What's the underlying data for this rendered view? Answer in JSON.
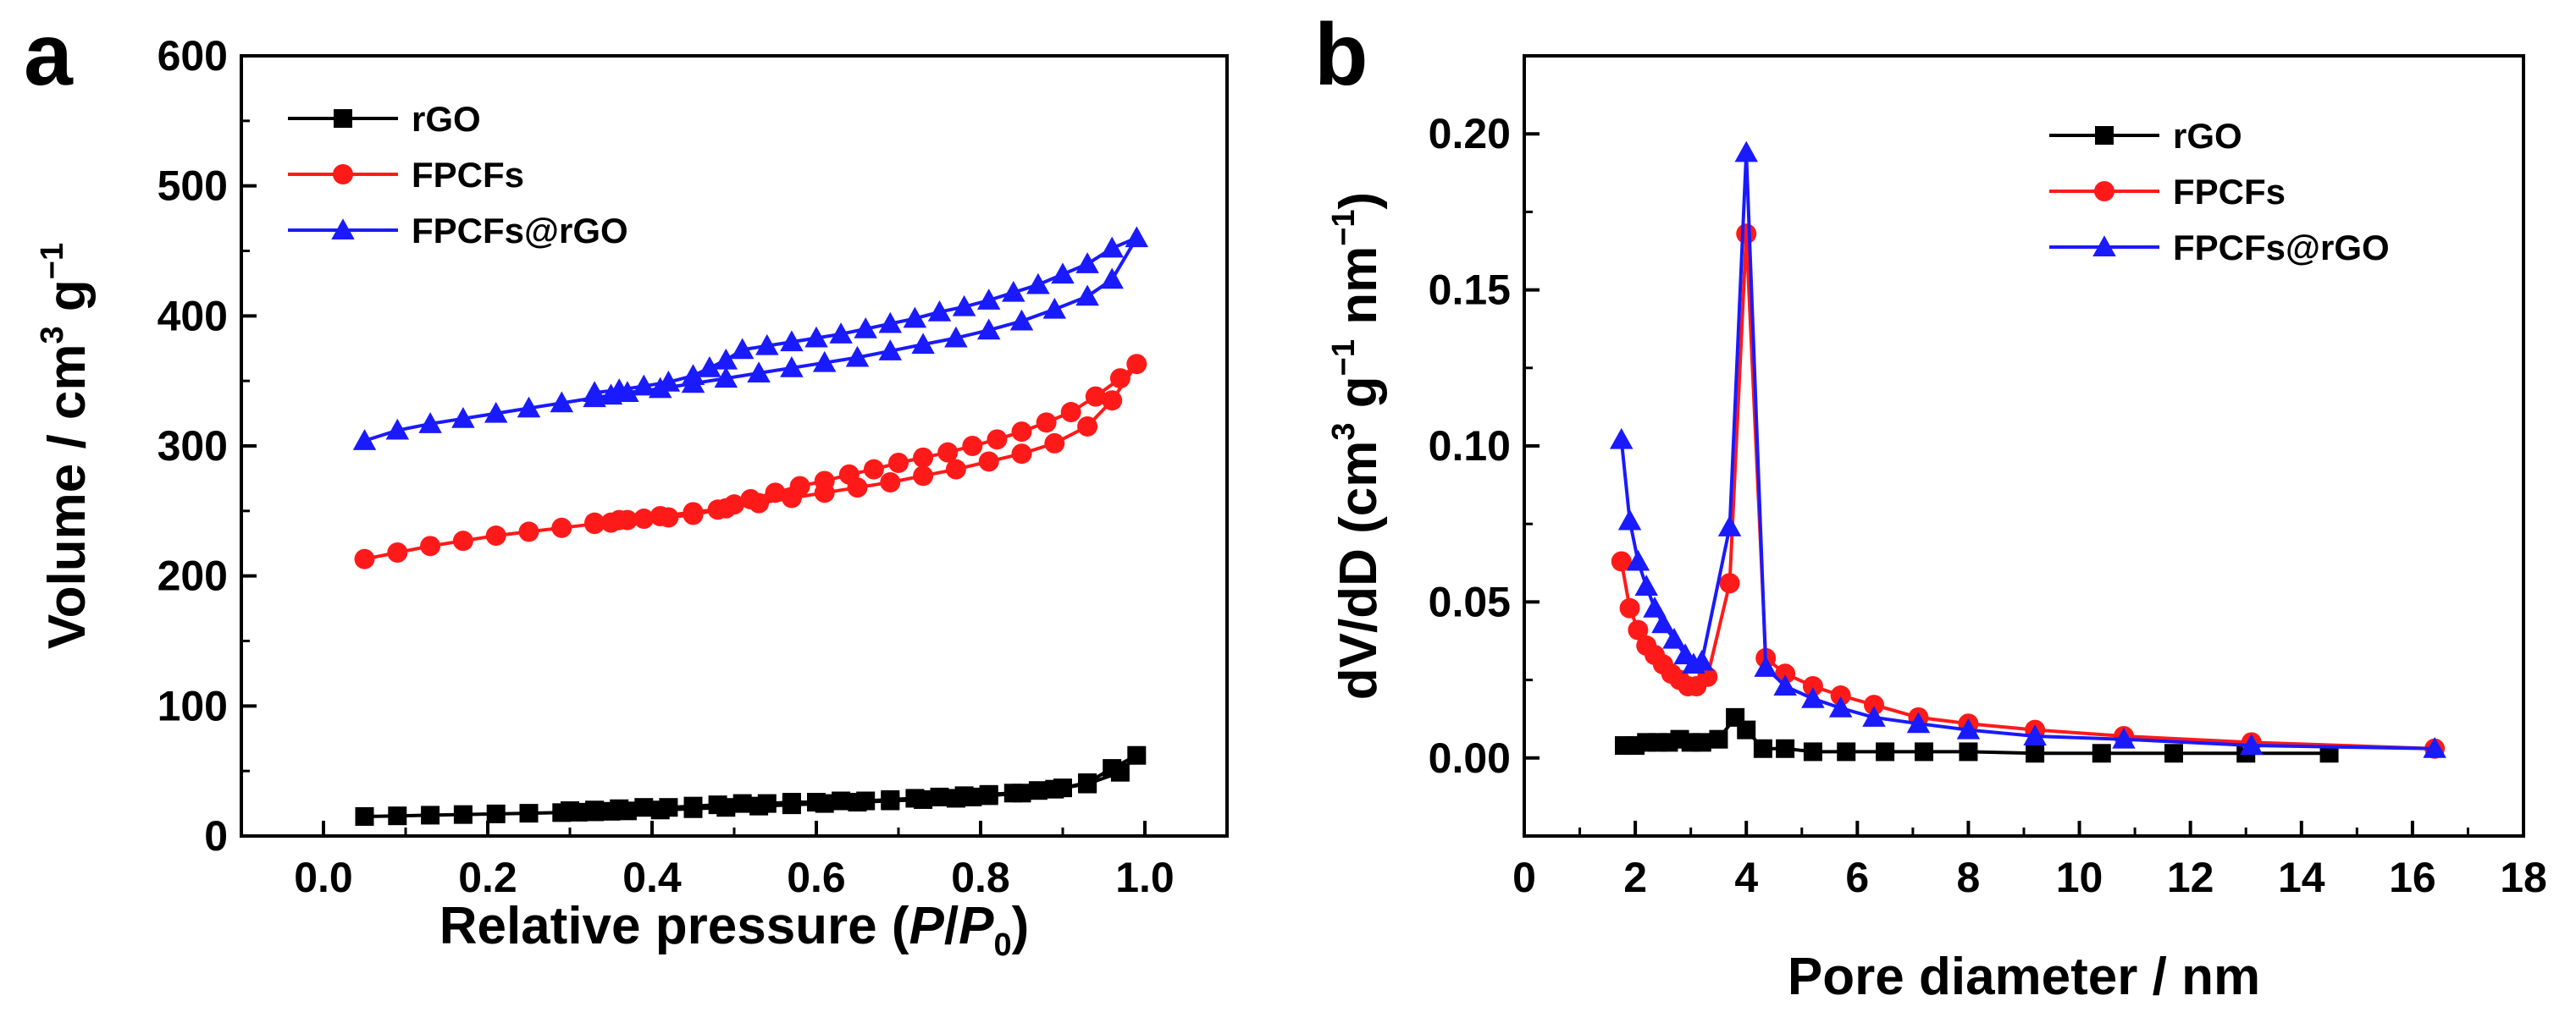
{
  "chart_data": [
    {
      "panel_label": "a",
      "type": "line",
      "xlabel_parts": [
        "Relative pressure (",
        "P",
        "/",
        "P",
        "0",
        ")"
      ],
      "ylabel_parts": [
        "Volume / cm",
        "3",
        " g",
        "−1"
      ],
      "xlim": [
        -0.1,
        1.1
      ],
      "ylim": [
        0,
        600
      ],
      "xticks": [
        0.0,
        0.2,
        0.4,
        0.6,
        0.8,
        1.0
      ],
      "xtick_labels": [
        "0.0",
        "0.2",
        "0.4",
        "0.6",
        "0.8",
        "1.0"
      ],
      "yticks": [
        0,
        100,
        200,
        300,
        400,
        500,
        600
      ],
      "ytick_labels": [
        "0",
        "100",
        "200",
        "300",
        "400",
        "500",
        "600"
      ],
      "legend_position": "top-left",
      "series": [
        {
          "name": "rGO",
          "color": "#000000",
          "marker": "square",
          "x": [
            0.05,
            0.09,
            0.13,
            0.17,
            0.21,
            0.25,
            0.29,
            0.31,
            0.33,
            0.35,
            0.37,
            0.41,
            0.45,
            0.49,
            0.53,
            0.57,
            0.61,
            0.65,
            0.69,
            0.73,
            0.77,
            0.79,
            0.81,
            0.85,
            0.89,
            0.93,
            0.97,
            0.99,
            0.96,
            0.93,
            0.9,
            0.87,
            0.84,
            0.81,
            0.78,
            0.75,
            0.72,
            0.69,
            0.66,
            0.63,
            0.6,
            0.57,
            0.54,
            0.51,
            0.48,
            0.45,
            0.42,
            0.39,
            0.36,
            0.33,
            0.3
          ],
          "y": [
            15,
            15.5,
            16,
            16.5,
            17,
            17.5,
            18,
            18.3,
            18.6,
            19,
            19.3,
            20,
            21,
            22,
            23,
            24,
            25,
            26,
            27,
            28,
            29,
            30,
            31,
            33,
            36,
            40,
            49,
            62,
            52,
            41,
            37,
            35,
            33,
            32,
            31,
            30,
            29,
            28,
            27,
            27,
            26,
            26,
            25,
            25,
            24,
            23,
            22,
            22,
            21,
            20,
            19.5
          ]
        },
        {
          "name": "FPCFs",
          "color": "#ff1a1a",
          "marker": "circle",
          "x": [
            0.05,
            0.09,
            0.13,
            0.17,
            0.21,
            0.25,
            0.29,
            0.33,
            0.35,
            0.37,
            0.41,
            0.45,
            0.49,
            0.53,
            0.57,
            0.61,
            0.65,
            0.69,
            0.73,
            0.77,
            0.81,
            0.85,
            0.89,
            0.93,
            0.96,
            0.99,
            0.97,
            0.94,
            0.91,
            0.88,
            0.85,
            0.82,
            0.79,
            0.76,
            0.73,
            0.7,
            0.67,
            0.64,
            0.61,
            0.58,
            0.55,
            0.52,
            0.5,
            0.48,
            0.45,
            0.42,
            0.39,
            0.36,
            0.33
          ],
          "y": [
            213,
            218,
            223,
            227,
            231,
            234,
            237,
            240,
            241,
            243,
            246,
            249,
            252,
            256,
            260,
            264,
            268,
            272,
            277,
            282,
            288,
            294,
            302,
            315,
            335,
            363,
            352,
            338,
            326,
            318,
            311,
            305,
            300,
            295,
            291,
            287,
            282,
            278,
            273,
            269,
            264,
            259,
            255,
            251,
            247,
            245,
            244,
            243,
            241
          ]
        },
        {
          "name": "FPCFs@rGO",
          "color": "#1a1aff",
          "marker": "triangle",
          "x": [
            0.05,
            0.09,
            0.13,
            0.17,
            0.21,
            0.25,
            0.29,
            0.33,
            0.35,
            0.37,
            0.41,
            0.45,
            0.49,
            0.53,
            0.57,
            0.61,
            0.65,
            0.69,
            0.73,
            0.77,
            0.81,
            0.85,
            0.89,
            0.93,
            0.96,
            0.99,
            0.96,
            0.93,
            0.9,
            0.87,
            0.84,
            0.81,
            0.78,
            0.75,
            0.72,
            0.69,
            0.66,
            0.63,
            0.6,
            0.57,
            0.54,
            0.51,
            0.49,
            0.47,
            0.45,
            0.42,
            0.39,
            0.36,
            0.33
          ],
          "y": [
            304,
            312,
            317,
            321,
            325,
            329,
            333,
            337,
            339,
            341,
            344,
            348,
            352,
            356,
            360,
            364,
            368,
            373,
            378,
            383,
            389,
            396,
            405,
            415,
            428,
            460,
            452,
            440,
            432,
            424,
            418,
            412,
            407,
            403,
            398,
            394,
            390,
            386,
            383,
            380,
            377,
            374,
            366,
            360,
            354,
            349,
            346,
            343,
            341
          ]
        }
      ]
    },
    {
      "panel_label": "b",
      "type": "line",
      "xlabel": "Pore diameter / nm",
      "ylabel_parts": [
        "dV/dD (cm",
        "3",
        " g",
        "−1",
        " nm",
        "−1",
        ")"
      ],
      "xlim": [
        0,
        18
      ],
      "ylim": [
        -0.025,
        0.225
      ],
      "xticks": [
        0,
        2,
        4,
        6,
        8,
        10,
        12,
        14,
        16,
        18
      ],
      "xtick_labels": [
        "0",
        "2",
        "4",
        "6",
        "8",
        "10",
        "12",
        "14",
        "16",
        "18"
      ],
      "yticks": [
        0.0,
        0.05,
        0.1,
        0.15,
        0.2
      ],
      "ytick_labels": [
        "0.00",
        "0.05",
        "0.10",
        "0.15",
        "0.20"
      ],
      "legend_position": "top-right",
      "series": [
        {
          "name": "rGO",
          "color": "#000000",
          "marker": "square",
          "x": [
            1.8,
            2.0,
            2.2,
            2.4,
            2.6,
            2.8,
            3.0,
            3.2,
            3.5,
            3.8,
            4.0,
            4.3,
            4.7,
            5.2,
            5.8,
            6.5,
            7.2,
            8.0,
            9.2,
            10.4,
            11.7,
            13.0,
            14.5
          ],
          "y": [
            0.004,
            0.004,
            0.005,
            0.005,
            0.005,
            0.006,
            0.005,
            0.005,
            0.006,
            0.013,
            0.009,
            0.003,
            0.003,
            0.002,
            0.002,
            0.002,
            0.002,
            0.002,
            0.0015,
            0.0015,
            0.0015,
            0.0015,
            0.0015
          ]
        },
        {
          "name": "FPCFs",
          "color": "#ff1a1a",
          "marker": "circle",
          "x": [
            1.75,
            1.9,
            2.05,
            2.2,
            2.35,
            2.5,
            2.65,
            2.8,
            2.95,
            3.1,
            3.3,
            3.7,
            4.0,
            4.35,
            4.7,
            5.2,
            5.7,
            6.3,
            7.1,
            8.0,
            9.2,
            10.8,
            13.1,
            16.4
          ],
          "y": [
            0.063,
            0.048,
            0.041,
            0.036,
            0.033,
            0.03,
            0.027,
            0.025,
            0.023,
            0.023,
            0.026,
            0.056,
            0.168,
            0.032,
            0.027,
            0.023,
            0.02,
            0.017,
            0.013,
            0.011,
            0.009,
            0.007,
            0.005,
            0.003
          ]
        },
        {
          "name": "FPCFs@rGO",
          "color": "#1a1aff",
          "marker": "triangle",
          "x": [
            1.75,
            1.9,
            2.05,
            2.2,
            2.35,
            2.5,
            2.7,
            2.9,
            3.05,
            3.2,
            3.7,
            4.0,
            4.35,
            4.7,
            5.2,
            5.7,
            6.3,
            7.1,
            8.0,
            9.2,
            10.8,
            13.1,
            16.4
          ],
          "y": [
            0.102,
            0.076,
            0.063,
            0.055,
            0.048,
            0.043,
            0.038,
            0.033,
            0.03,
            0.031,
            0.074,
            0.194,
            0.029,
            0.023,
            0.019,
            0.016,
            0.013,
            0.011,
            0.009,
            0.007,
            0.006,
            0.004,
            0.003
          ]
        }
      ]
    }
  ]
}
